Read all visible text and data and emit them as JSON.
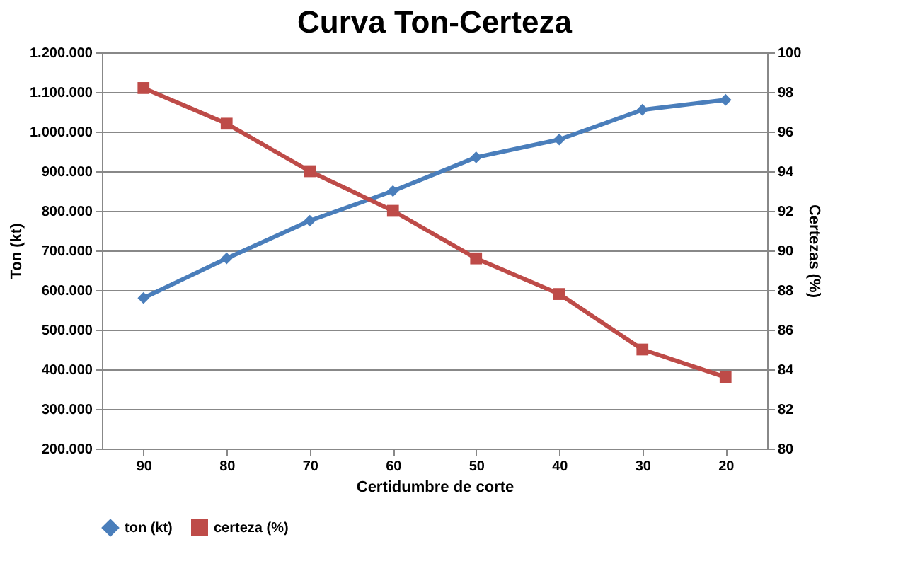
{
  "chart_data": {
    "type": "line",
    "title": "Curva Ton-Certeza",
    "xlabel": "Certidumbre de corte",
    "ylabel": "Ton (kt)",
    "y2label": "Certezas (%)",
    "categories": [
      "90",
      "80",
      "70",
      "60",
      "50",
      "40",
      "30",
      "20"
    ],
    "series": [
      {
        "name": "ton (kt)",
        "color": "#4a7ebb",
        "marker": "diamond",
        "values": [
          580000,
          680000,
          775000,
          850000,
          935000,
          980000,
          1055000,
          1080000
        ]
      },
      {
        "name": "certeza (%)",
        "color": "#be4b48",
        "marker": "square",
        "axis": "y2",
        "values": [
          98.2,
          96.4,
          94,
          92,
          89.6,
          87.8,
          85,
          83.6
        ]
      }
    ],
    "ylim": [
      200000,
      1200000
    ],
    "yticks": [
      {
        "value": 200000,
        "label": "200.000"
      },
      {
        "value": 300000,
        "label": "300.000"
      },
      {
        "value": 400000,
        "label": "400.000"
      },
      {
        "value": 500000,
        "label": "500.000"
      },
      {
        "value": 600000,
        "label": "600.000"
      },
      {
        "value": 700000,
        "label": "700.000"
      },
      {
        "value": 800000,
        "label": "800.000"
      },
      {
        "value": 900000,
        "label": "900.000"
      },
      {
        "value": 1000000,
        "label": "1.000.000"
      },
      {
        "value": 1100000,
        "label": "1.100.000"
      },
      {
        "value": 1200000,
        "label": "1.200.000"
      }
    ],
    "y2lim": [
      80,
      100
    ],
    "y2ticks": [
      80,
      82,
      84,
      86,
      88,
      90,
      92,
      94,
      96,
      98,
      100
    ],
    "grid": "y",
    "legend": "bottom",
    "line_style": "solid"
  }
}
